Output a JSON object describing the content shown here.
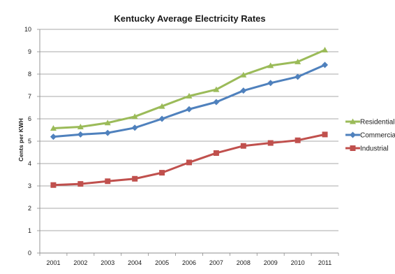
{
  "chart_data": {
    "type": "line",
    "title": "Kentucky Average Electricity Rates",
    "xlabel": "",
    "ylabel": "Cents per KWH",
    "categories": [
      "2001",
      "2002",
      "2003",
      "2004",
      "2005",
      "2006",
      "2007",
      "2008",
      "2009",
      "2010",
      "2011"
    ],
    "ylim": [
      0,
      10
    ],
    "yticks": [
      "0",
      "1",
      "2",
      "3",
      "4",
      "5",
      "6",
      "7",
      "8",
      "9",
      "10"
    ],
    "grid": true,
    "legend_position": "right",
    "series": [
      {
        "name": "Residential",
        "color": "#9bbb59",
        "marker": "triangle",
        "values": [
          5.58,
          5.64,
          5.82,
          6.1,
          6.56,
          7.02,
          7.31,
          7.96,
          8.38,
          8.55,
          9.08
        ]
      },
      {
        "name": "Commercial",
        "color": "#4f81bd",
        "marker": "diamond",
        "values": [
          5.2,
          5.3,
          5.37,
          5.6,
          6.0,
          6.43,
          6.75,
          7.26,
          7.6,
          7.88,
          8.41
        ]
      },
      {
        "name": "Industrial",
        "color": "#c0504d",
        "marker": "square",
        "values": [
          3.04,
          3.09,
          3.21,
          3.32,
          3.59,
          4.05,
          4.47,
          4.79,
          4.92,
          5.04,
          5.3
        ]
      }
    ]
  }
}
